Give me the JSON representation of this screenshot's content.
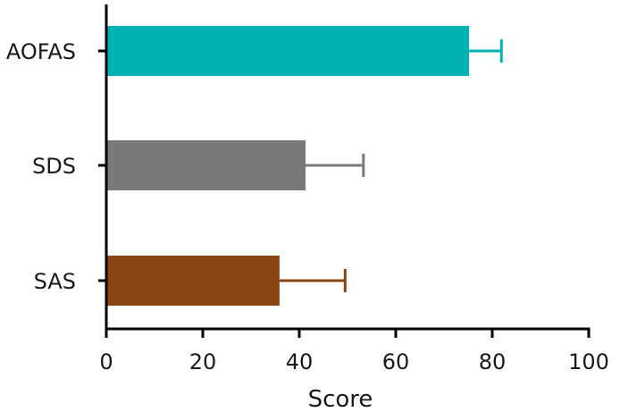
{
  "chart_data": {
    "type": "bar",
    "orientation": "horizontal",
    "categories": [
      "AOFAS",
      "SDS",
      "SAS"
    ],
    "values": [
      75.2,
      41.3,
      35.9
    ],
    "errors": [
      6.7,
      12.0,
      13.6
    ],
    "colors": [
      "#00b3b3",
      "#797979",
      "#8b4513"
    ],
    "xlabel": "Score",
    "ylabel": "",
    "xlim": [
      0,
      100
    ],
    "xticks": [
      "0",
      "20",
      "40",
      "60",
      "80",
      "100"
    ],
    "grid": false
  }
}
